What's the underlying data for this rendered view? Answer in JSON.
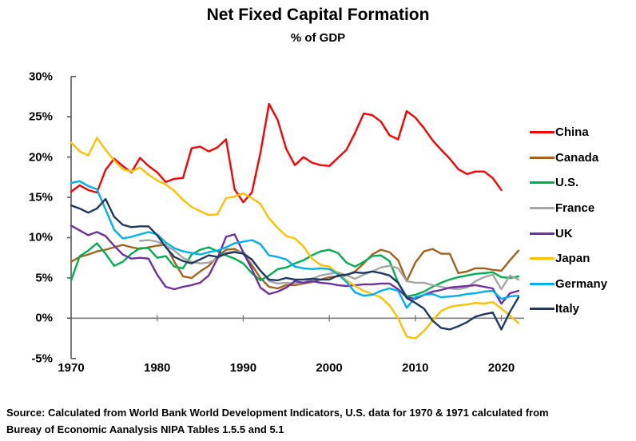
{
  "title": "Net Fixed Capital Formation",
  "subtitle": "% of GDP",
  "source": {
    "line1": "Source:  Calculated from World Bank World Development Indicators, U.S. data for 1970 & 1971 calculated from",
    "line2": "Bureay of Economic Aanalysis NIPA Tables 1.5.5 and 5.1"
  },
  "axes": {
    "y_tick_values": [
      30,
      25,
      20,
      15,
      10,
      5,
      0,
      -5
    ],
    "y_tick_labels": [
      "30%",
      "25%",
      "20%",
      "15%",
      "10%",
      "5%",
      "0%",
      "-5%"
    ],
    "x_tick_values": [
      1970,
      1980,
      1990,
      2000,
      2010,
      2020
    ],
    "x_tick_labels": [
      "1970",
      "1980",
      "1990",
      "2000",
      "2010",
      "2020"
    ],
    "spine_color": "#595959",
    "zero_line_color": "#7f7f7f"
  },
  "chart_data": {
    "type": "line",
    "title": "Net Fixed Capital Formation",
    "subtitle": "% of GDP",
    "xlabel": "",
    "ylabel": "% of GDP",
    "xlim": [
      1970,
      2022
    ],
    "ylim": [
      -5,
      30
    ],
    "grid": false,
    "legend_position": "right",
    "x_start_year": 1970,
    "x_step_years": 1,
    "series": [
      {
        "name": "China",
        "color": "#FF0000",
        "values": [
          15.7,
          16.5,
          15.9,
          15.6,
          18.4,
          19.8,
          18.9,
          18.1,
          19.9,
          18.9,
          18.1,
          16.9,
          17.3,
          17.4,
          21.1,
          21.3,
          20.7,
          21.2,
          22.2,
          16.0,
          14.4,
          15.6,
          20.5,
          26.6,
          24.6,
          21.0,
          19.0,
          20.0,
          19.3,
          19.0,
          18.9,
          19.9,
          20.9,
          23.0,
          25.4,
          25.2,
          24.4,
          22.7,
          22.2,
          25.7,
          24.9,
          23.6,
          22.1,
          20.9,
          19.8,
          18.5,
          17.9,
          18.2,
          18.2,
          17.4,
          15.9,
          null,
          null
        ]
      },
      {
        "name": "Canada",
        "color": "#A3611C",
        "values": [
          7.0,
          7.6,
          7.9,
          8.3,
          8.5,
          8.8,
          9.1,
          8.8,
          8.6,
          8.8,
          9.0,
          9.1,
          7.0,
          5.2,
          5.0,
          5.8,
          6.5,
          7.6,
          8.5,
          8.6,
          8.0,
          6.6,
          5.0,
          3.9,
          3.7,
          4.1,
          4.1,
          4.3,
          4.5,
          4.8,
          5.1,
          5.2,
          5.3,
          5.8,
          6.8,
          7.9,
          8.5,
          8.2,
          7.2,
          4.6,
          6.9,
          8.3,
          8.6,
          8.0,
          8.0,
          5.6,
          5.8,
          6.2,
          6.2,
          6.0,
          5.9,
          7.2,
          8.4
        ]
      },
      {
        "name": "U.S.",
        "color": "#00B050",
        "values": [
          4.7,
          7.7,
          8.4,
          9.3,
          8.0,
          6.5,
          7.0,
          8.0,
          8.7,
          8.7,
          7.5,
          7.7,
          6.4,
          6.2,
          7.9,
          8.5,
          8.8,
          8.3,
          7.8,
          7.4,
          6.8,
          5.6,
          4.7,
          5.3,
          6.1,
          6.3,
          6.8,
          7.2,
          7.8,
          8.3,
          8.5,
          8.1,
          6.9,
          6.4,
          7.0,
          7.7,
          7.8,
          7.1,
          4.4,
          2.7,
          2.9,
          3.3,
          3.9,
          4.4,
          4.8,
          5.1,
          5.3,
          5.5,
          5.6,
          5.7,
          5.1,
          5.0,
          5.2
        ]
      },
      {
        "name": "France",
        "color": "#A6A6A6",
        "values": [
          null,
          null,
          null,
          null,
          null,
          null,
          null,
          null,
          9.6,
          9.7,
          9.5,
          9.0,
          8.4,
          7.5,
          7.0,
          6.8,
          6.9,
          7.4,
          8.1,
          8.3,
          8.2,
          7.2,
          5.9,
          4.6,
          4.3,
          4.4,
          4.3,
          4.4,
          4.9,
          5.3,
          5.5,
          5.7,
          5.3,
          4.9,
          5.4,
          5.8,
          6.3,
          6.5,
          6.2,
          4.6,
          4.4,
          4.4,
          4.1,
          3.9,
          3.7,
          3.6,
          3.8,
          4.6,
          5.1,
          5.4,
          3.6,
          5.3,
          4.8
        ]
      },
      {
        "name": "UK",
        "color": "#7030A0",
        "values": [
          11.5,
          10.9,
          10.3,
          10.7,
          10.2,
          9.0,
          7.9,
          7.4,
          7.5,
          7.4,
          5.4,
          3.9,
          3.6,
          3.9,
          4.1,
          4.4,
          5.3,
          7.4,
          10.1,
          10.4,
          8.2,
          6.1,
          3.8,
          3.0,
          3.3,
          3.8,
          4.6,
          4.4,
          4.6,
          4.4,
          4.3,
          4.1,
          4.0,
          4.1,
          4.2,
          4.2,
          4.3,
          4.3,
          3.6,
          2.6,
          2.4,
          2.9,
          3.3,
          3.5,
          3.8,
          3.9,
          4.0,
          4.1,
          3.9,
          3.7,
          1.8,
          3.1,
          3.4
        ]
      },
      {
        "name": "Japan",
        "color": "#FFC000",
        "values": [
          21.8,
          20.7,
          20.2,
          22.4,
          20.9,
          19.6,
          18.5,
          18.2,
          18.7,
          17.8,
          17.1,
          16.6,
          15.8,
          14.7,
          13.8,
          13.3,
          12.8,
          12.9,
          14.9,
          15.1,
          15.5,
          14.9,
          14.2,
          12.4,
          11.2,
          10.2,
          9.9,
          8.9,
          7.4,
          6.6,
          6.4,
          5.6,
          4.7,
          4.0,
          3.4,
          3.0,
          2.6,
          1.6,
          0.0,
          -2.3,
          -2.5,
          -1.6,
          -0.3,
          0.9,
          1.4,
          1.6,
          1.7,
          1.9,
          1.8,
          2.0,
          1.2,
          0.3,
          -0.6
        ]
      },
      {
        "name": "Germany",
        "color": "#00B0F0",
        "values": [
          16.8,
          17.0,
          16.4,
          16.0,
          13.5,
          11.0,
          9.9,
          10.1,
          10.4,
          10.7,
          10.4,
          9.4,
          8.7,
          8.3,
          8.1,
          7.9,
          8.2,
          8.4,
          8.8,
          9.3,
          9.5,
          9.7,
          9.2,
          7.8,
          7.6,
          7.3,
          6.4,
          6.2,
          6.1,
          6.2,
          6.1,
          5.5,
          4.5,
          3.2,
          2.8,
          2.9,
          3.4,
          3.7,
          3.4,
          1.3,
          2.6,
          2.9,
          3.0,
          2.6,
          2.7,
          2.8,
          3.0,
          3.1,
          3.3,
          3.4,
          2.4,
          2.7,
          2.8
        ]
      },
      {
        "name": "Italy",
        "color": "#1F3864",
        "values": [
          14.0,
          13.6,
          13.1,
          13.6,
          14.8,
          12.6,
          11.6,
          11.3,
          11.4,
          11.4,
          10.3,
          8.8,
          7.6,
          7.1,
          6.8,
          7.3,
          7.8,
          7.6,
          8.0,
          8.2,
          8.0,
          7.3,
          5.9,
          4.8,
          4.7,
          5.0,
          4.8,
          4.8,
          4.9,
          4.8,
          4.8,
          5.3,
          5.4,
          5.7,
          5.6,
          5.8,
          5.6,
          5.3,
          4.4,
          2.5,
          1.9,
          1.2,
          -0.3,
          -1.2,
          -1.4,
          -1.0,
          -0.5,
          0.2,
          0.5,
          0.7,
          -1.4,
          0.8,
          2.6
        ]
      }
    ]
  }
}
